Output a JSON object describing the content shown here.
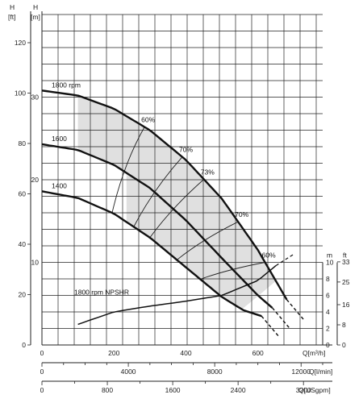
{
  "chart_data": {
    "type": "line",
    "axes": {
      "y_m": {
        "title": "H",
        "unit": "[m]",
        "range": [
          0,
          40
        ],
        "ticks": [
          10,
          20,
          30
        ]
      },
      "y_ft": {
        "title": "H",
        "unit": "[ft]",
        "range": [
          0,
          131
        ],
        "ticks": [
          0,
          20,
          40,
          60,
          80,
          100,
          120
        ]
      },
      "x_m3h": {
        "unit": "Q[m³/h]",
        "range": [
          0,
          780
        ],
        "ticks": [
          0,
          200,
          400,
          600
        ]
      },
      "x_lmin": {
        "unit": "Q[l/min]",
        "range": [
          0,
          13000
        ],
        "ticks": [
          0,
          4000,
          8000,
          12000
        ]
      },
      "x_usgpm": {
        "unit": "Q[USgpm]",
        "range": [
          0,
          3435
        ],
        "ticks": [
          0,
          800,
          1600,
          2400,
          3200
        ]
      },
      "npshr_m": {
        "unit": "m",
        "range": [
          0,
          10
        ],
        "ticks": [
          0,
          2,
          4,
          6,
          8,
          10
        ]
      },
      "npshr_ft": {
        "unit": "ft",
        "range": [
          0,
          33
        ],
        "ticks": [
          0,
          8,
          16,
          25,
          33
        ]
      }
    },
    "grid": true,
    "series": [
      {
        "name": "1800 rpm",
        "x": [
          0,
          100,
          200,
          300,
          400,
          500,
          600,
          680
        ],
        "y": [
          30.8,
          30.2,
          28.6,
          26.0,
          22.4,
          17.7,
          11.5,
          5.5
        ]
      },
      {
        "name": "1600",
        "x": [
          0,
          100,
          200,
          300,
          400,
          500,
          600,
          640
        ],
        "y": [
          24.3,
          23.6,
          21.8,
          19.0,
          15.1,
          10.5,
          6.0,
          4.5
        ]
      },
      {
        "name": "1400",
        "x": [
          0,
          100,
          200,
          300,
          400,
          500,
          560,
          610
        ],
        "y": [
          18.6,
          17.8,
          15.9,
          13.0,
          9.4,
          5.8,
          4.2,
          3.5
        ]
      }
    ],
    "npshr": {
      "name": "1800 rpm NPSHR",
      "x": [
        100,
        200,
        300,
        400,
        500,
        600,
        650
      ],
      "y": [
        2.5,
        4.0,
        4.7,
        5.3,
        6.0,
        7.8,
        9.6
      ]
    },
    "efficiency_labels": [
      "60%",
      "70%",
      "73%",
      "70%",
      "60%"
    ]
  }
}
